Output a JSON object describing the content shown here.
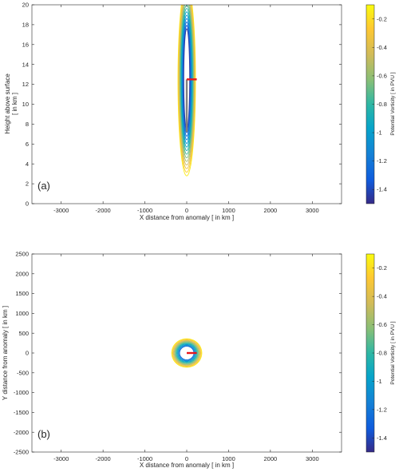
{
  "chart_data": [
    {
      "type": "contour",
      "panel_label": "(a)",
      "xlabel": "X distance from anomaly [ in km ]",
      "ylabel_line1": "Height above surface",
      "ylabel_line2": "[ in km ]",
      "xlim": [
        -3700,
        3700
      ],
      "ylim": [
        0,
        20
      ],
      "xticks": [
        -3000,
        -2000,
        -1000,
        0,
        1000,
        2000,
        3000
      ],
      "yticks": [
        0,
        2,
        4,
        6,
        8,
        10,
        12,
        14,
        16,
        18,
        20
      ],
      "colorbar": {
        "label": "Potential Vorticity [ in PVU ]",
        "range": [
          -1.5,
          -0.1
        ],
        "ticks": [
          "-0.2",
          "-0.4",
          "-0.6",
          "-0.8",
          "-1",
          "-1.2",
          "-1.4"
        ],
        "tick_values": [
          -0.2,
          -0.4,
          -0.6,
          -0.8,
          -1.0,
          -1.2,
          -1.4
        ]
      },
      "contours": {
        "center": [
          0,
          12.5
        ],
        "levels": [
          -0.15,
          -0.25,
          -0.35,
          -0.45,
          -0.55,
          -0.65,
          -0.75,
          -0.85,
          -0.95,
          -1.05,
          -1.15,
          -1.25,
          -1.35,
          -1.45
        ],
        "outer_half_width_km": 210,
        "outer_bottom_km": 2.8,
        "outer_top_km": 22,
        "inner_half_width_km": 70,
        "inner_bottom_km": 7.5,
        "inner_top_km": 17.6
      },
      "vertical_segment": {
        "x": 0,
        "y": [
          7.2,
          12.5
        ],
        "color": "#808080"
      },
      "horizontal_segment": {
        "x": [
          0,
          240
        ],
        "y": 12.5,
        "color": "#e8151b"
      }
    },
    {
      "type": "contour",
      "panel_label": "(b)",
      "xlabel": "X distance from anomaly [ in km ]",
      "ylabel": "Y distance from anomaly [ in km ]",
      "xlim": [
        -3700,
        3700
      ],
      "ylim": [
        -2500,
        2500
      ],
      "xticks": [
        -3000,
        -2000,
        -1000,
        0,
        1000,
        2000,
        3000
      ],
      "yticks": [
        -2500,
        -2000,
        -1500,
        -1000,
        -500,
        0,
        500,
        1000,
        1500,
        2000,
        2500
      ],
      "colorbar": {
        "label": "Potential Vorticity [ in PVU ]",
        "range": [
          -1.5,
          -0.1
        ],
        "ticks": [
          "-0.2",
          "-0.4",
          "-0.6",
          "-0.8",
          "-1",
          "-1.2",
          "-1.4"
        ],
        "tick_values": [
          -0.2,
          -0.4,
          -0.6,
          -0.8,
          -1.0,
          -1.2,
          -1.4
        ]
      },
      "contours": {
        "center": [
          0,
          0
        ],
        "levels": [
          -0.15,
          -0.25,
          -0.35,
          -0.45,
          -0.55,
          -0.65,
          -0.75,
          -0.85,
          -0.95,
          -1.05,
          -1.15,
          -1.25
        ],
        "outer_radius_km": 360,
        "inner_radius_km": 170
      },
      "horizontal_segment": {
        "x": [
          0,
          240
        ],
        "y": 0,
        "color": "#e8151b"
      }
    }
  ]
}
